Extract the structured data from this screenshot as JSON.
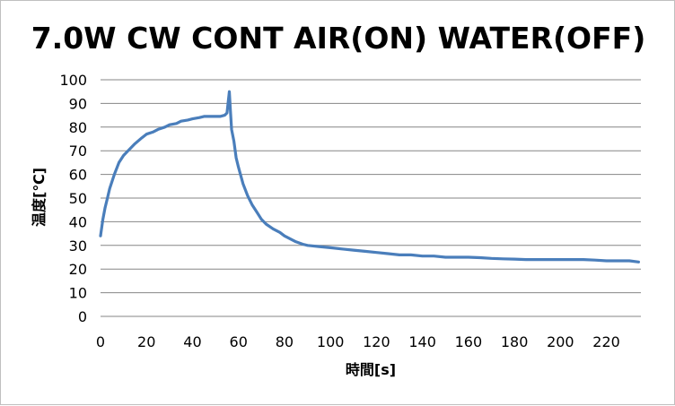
{
  "chart_data": {
    "type": "line",
    "title": "7.0W CW CONT AIR(ON) WATER(OFF)",
    "xlabel": "時間[s]",
    "ylabel": "温度[℃]",
    "xlim": [
      0,
      235
    ],
    "ylim": [
      0,
      100
    ],
    "x_ticks": [
      "0",
      "20",
      "40",
      "60",
      "80",
      "100",
      "120",
      "140",
      "160",
      "180",
      "200",
      "220"
    ],
    "y_ticks": [
      "0",
      "10",
      "20",
      "30",
      "40",
      "50",
      "60",
      "70",
      "80",
      "90",
      "100"
    ],
    "grid": true,
    "legend": "none",
    "series_color": "#4a7ebb",
    "series": [
      {
        "x": [
          0,
          1,
          2,
          3,
          4,
          5,
          6,
          8,
          10,
          12,
          15,
          18,
          20,
          23,
          25,
          28,
          30,
          33,
          35,
          38,
          40,
          43,
          45,
          48,
          50,
          52,
          54,
          55,
          56,
          56.5,
          57,
          58,
          59,
          60,
          62,
          64,
          66,
          68,
          70,
          72,
          75,
          78,
          80,
          83,
          85,
          88,
          90,
          95,
          100,
          105,
          110,
          115,
          120,
          125,
          130,
          135,
          140,
          145,
          150,
          155,
          160,
          165,
          170,
          175,
          180,
          185,
          190,
          195,
          200,
          205,
          210,
          215,
          220,
          225,
          230,
          234
        ],
        "y": [
          34,
          41,
          46,
          50,
          54,
          57,
          60,
          65,
          68,
          70,
          73,
          75.5,
          77,
          78,
          79,
          80,
          81,
          81.5,
          82.5,
          83,
          83.5,
          84,
          84.5,
          84.5,
          84.5,
          84.5,
          85,
          86,
          95,
          87,
          79,
          74,
          67,
          63,
          56,
          51,
          47,
          44,
          41,
          39,
          37,
          35.5,
          34,
          32.5,
          31.5,
          30.5,
          30,
          29.5,
          29,
          28.5,
          28,
          27.5,
          27,
          26.5,
          26,
          26,
          25.5,
          25.5,
          25,
          25,
          25,
          24.8,
          24.5,
          24.3,
          24.2,
          24,
          24,
          24,
          24,
          24,
          24,
          23.8,
          23.5,
          23.5,
          23.5,
          23
        ]
      }
    ]
  }
}
